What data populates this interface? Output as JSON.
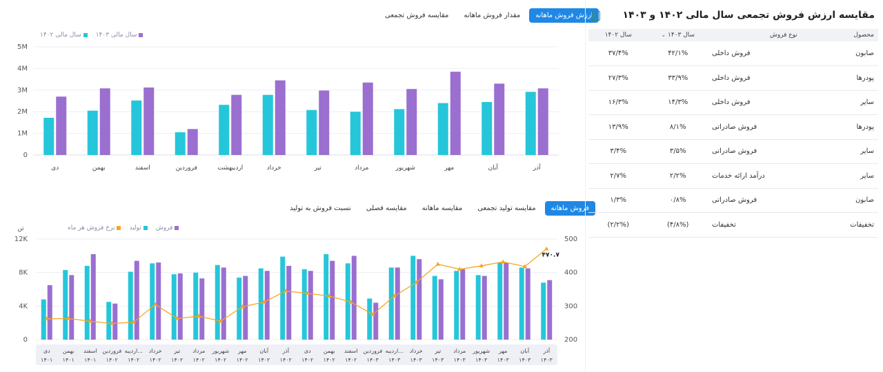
{
  "top_tabs": [
    {
      "label": "ارزش فروش ماهانه",
      "active": true
    },
    {
      "label": "مقدار فروش ماهانه",
      "active": false
    },
    {
      "label": "مقایسه فروش تجمعی",
      "active": false
    }
  ],
  "top_chart": {
    "legend": [
      {
        "label": "سال مالی ۱۴۰۳",
        "color": "#9a6fd0"
      },
      {
        "label": "سال مالی ۱۴۰۲",
        "color": "#26c6da"
      }
    ],
    "y_ticks": [
      "5M",
      "4M",
      "3M",
      "2M",
      "1M",
      "0"
    ]
  },
  "bottom_tabs": [
    {
      "label": "فروش ماهانه",
      "active": true
    },
    {
      "label": "مقایسه تولید تجمعی",
      "active": false
    },
    {
      "label": "مقایسه ماهانه",
      "active": false
    },
    {
      "label": "مقایسه فصلی",
      "active": false
    },
    {
      "label": "نسبت فروش به تولید",
      "active": false
    }
  ],
  "bottom_chart": {
    "unit_label": "تن",
    "legend": [
      {
        "label": "فروش",
        "color": "#9a6fd0"
      },
      {
        "label": "تولید",
        "color": "#26c6da"
      },
      {
        "label": "نرخ فروش هر ماه",
        "color": "#f5a623"
      }
    ],
    "y_left_ticks": [
      "12K",
      "8K",
      "4K",
      "0"
    ],
    "y_right_ticks": [
      "500",
      "400",
      "300",
      "200"
    ],
    "last_point_label": "۴۷۰.۷"
  },
  "table": {
    "title": "مقایسه ارزش فروش تجمعی سال مالی ۱۴۰۲ و ۱۴۰۳",
    "excel_icon": "excel-icon",
    "headers": [
      "محصول",
      "نوع فروش",
      "سال ۱۴۰۳",
      "سال ۱۴۰۲"
    ],
    "rows": [
      [
        "صابون",
        "فروش داخلی",
        "۴۲/۱%",
        "۳۷/۴%"
      ],
      [
        "پودرها",
        "فروش داخلی",
        "۳۳/۹%",
        "۲۷/۳%"
      ],
      [
        "سایر",
        "فروش داخلی",
        "۱۴/۳%",
        "۱۶/۳%"
      ],
      [
        "پودرها",
        "فروش صادراتی",
        "۸/۱%",
        "۱۳/۹%"
      ],
      [
        "سایر",
        "فروش صادراتی",
        "۳/۵%",
        "۳/۴%"
      ],
      [
        "سایر",
        "درآمد ارائه خدمات",
        "۲/۲%",
        "۲/۷%"
      ],
      [
        "صابون",
        "فروش صادراتی",
        "۰/۸%",
        "۱/۳%"
      ],
      [
        "تخفیفات",
        "تخفیفات",
        "(۴/۸%)",
        "(۲/۲%)"
      ]
    ]
  },
  "chart_data": [
    {
      "type": "bar",
      "title": "",
      "categories": [
        "دی",
        "بهمن",
        "اسفند",
        "فروردین",
        "اردیبهشت",
        "خرداد",
        "تیر",
        "مرداد",
        "شهریور",
        "مهر",
        "آبان",
        "آذر"
      ],
      "series": [
        {
          "name": "سال مالی ۱۴۰۲",
          "values": [
            1.72,
            2.05,
            2.52,
            1.05,
            2.32,
            2.78,
            2.08,
            2.0,
            2.12,
            2.4,
            2.45,
            2.92
          ]
        },
        {
          "name": "سال مالی ۱۴۰۳",
          "values": [
            2.7,
            3.08,
            3.12,
            1.2,
            2.78,
            3.45,
            2.98,
            3.35,
            3.05,
            3.85,
            3.3,
            3.08
          ]
        }
      ],
      "yunit": "M",
      "ylim": [
        0,
        5
      ],
      "grid": true,
      "legend": "top-left"
    },
    {
      "type": "bar",
      "title": "",
      "categories": [
        "دی ۱۴۰۱",
        "بهمن ۱۴۰۱",
        "اسفند ۱۴۰۱",
        "فروردین ۱۴۰۲",
        "اردیبهشت ۱۴۰۲",
        "خرداد ۱۴۰۲",
        "تیر ۱۴۰۲",
        "مرداد ۱۴۰۲",
        "شهریور ۱۴۰۲",
        "مهر ۱۴۰۲",
        "آبان ۱۴۰۲",
        "آذر ۱۴۰۲",
        "دی ۱۴۰۲",
        "بهمن ۱۴۰۲",
        "اسفند ۱۴۰۲",
        "فروردین ۱۴۰۳",
        "اردیبهشت ۱۴۰۳",
        "خرداد ۱۴۰۳",
        "تیر ۱۴۰۳",
        "مرداد ۱۴۰۳",
        "شهریور ۱۴۰۳",
        "مهر ۱۴۰۳",
        "آبان ۱۴۰۳",
        "آذر ۱۴۰۳"
      ],
      "category_labels": [
        [
          "دی",
          "۱۴۰۱"
        ],
        [
          "بهمن",
          "۱۴۰۱"
        ],
        [
          "اسفند",
          "۱۴۰۱"
        ],
        [
          "فروردین",
          "۱۴۰۲"
        ],
        [
          "اردیبه...",
          "۱۴۰۲"
        ],
        [
          "خرداد",
          "۱۴۰۲"
        ],
        [
          "تیر",
          "۱۴۰۲"
        ],
        [
          "مرداد",
          "۱۴۰۲"
        ],
        [
          "شهریور",
          "۱۴۰۲"
        ],
        [
          "مهر",
          "۱۴۰۲"
        ],
        [
          "آبان",
          "۱۴۰۲"
        ],
        [
          "آذر",
          "۱۴۰۲"
        ],
        [
          "دی",
          "۱۴۰۲"
        ],
        [
          "بهمن",
          "۱۴۰۲"
        ],
        [
          "اسفند",
          "۱۴۰۲"
        ],
        [
          "فروردین",
          "۱۴۰۳"
        ],
        [
          "اردیبه...",
          "۱۴۰۳"
        ],
        [
          "خرداد",
          "۱۴۰۳"
        ],
        [
          "تیر",
          "۱۴۰۳"
        ],
        [
          "مرداد",
          "۱۴۰۳"
        ],
        [
          "شهریور",
          "۱۴۰۳"
        ],
        [
          "مهر",
          "۱۴۰۳"
        ],
        [
          "آبان",
          "۱۴۰۳"
        ],
        [
          "آذر",
          "۱۴۰۳"
        ]
      ],
      "series": [
        {
          "name": "تولید",
          "values": [
            4.8,
            8.3,
            8.8,
            4.5,
            8.1,
            9.1,
            7.8,
            8.0,
            8.9,
            7.4,
            8.5,
            9.9,
            8.4,
            10.2,
            9.1,
            4.9,
            8.6,
            10.0,
            7.6,
            8.2,
            7.7,
            9.2,
            8.6,
            6.8
          ]
        },
        {
          "name": "فروش",
          "values": [
            6.5,
            7.7,
            10.2,
            4.3,
            9.4,
            9.2,
            7.9,
            7.3,
            8.6,
            7.6,
            8.2,
            8.8,
            8.2,
            9.4,
            10.0,
            4.4,
            8.6,
            9.6,
            7.2,
            8.4,
            7.6,
            9.2,
            8.5,
            7.1
          ]
        },
        {
          "name": "نرخ فروش هر ماه",
          "axis": "right",
          "values": [
            262,
            263,
            255,
            248,
            252,
            305,
            263,
            270,
            255,
            298,
            312,
            345,
            338,
            330,
            312,
            275,
            330,
            370,
            425,
            410,
            420,
            432,
            418,
            470.7
          ]
        }
      ],
      "yunit": "K",
      "ylim": [
        0,
        12
      ],
      "y2lim": [
        200,
        500
      ],
      "grid": true,
      "legend": "top-left"
    }
  ]
}
